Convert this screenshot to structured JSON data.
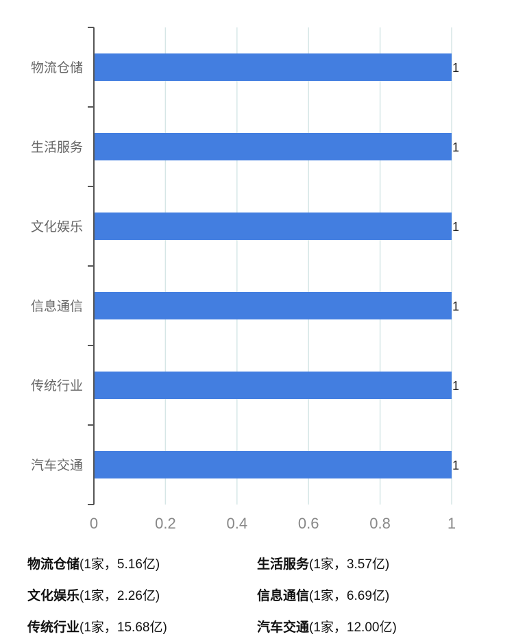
{
  "chart_data": {
    "type": "bar",
    "orientation": "horizontal",
    "categories": [
      "物流仓储",
      "生活服务",
      "文化娱乐",
      "信息通信",
      "传统行业",
      "汽车交通"
    ],
    "values": [
      1,
      1,
      1,
      1,
      1,
      1
    ],
    "data_labels": [
      "1",
      "1",
      "1",
      "1",
      "1",
      "1"
    ],
    "x_ticks": [
      "0",
      "0.2",
      "0.4",
      "0.6",
      "0.8",
      "1"
    ],
    "xlim": [
      0,
      1
    ],
    "grid": true,
    "bar_color": "#437ee0",
    "grid_color": "#d6e6e6",
    "axis_color": "#555555"
  },
  "legend": [
    {
      "name": "物流仓储",
      "detail": "(1家，5.16亿)"
    },
    {
      "name": "生活服务",
      "detail": "(1家，3.57亿)"
    },
    {
      "name": "文化娱乐",
      "detail": "(1家，2.26亿)"
    },
    {
      "name": "信息通信",
      "detail": "(1家，6.69亿)"
    },
    {
      "name": "传统行业",
      "detail": "(1家，15.68亿)"
    },
    {
      "name": "汽车交通",
      "detail": "(1家，12.00亿)"
    }
  ]
}
